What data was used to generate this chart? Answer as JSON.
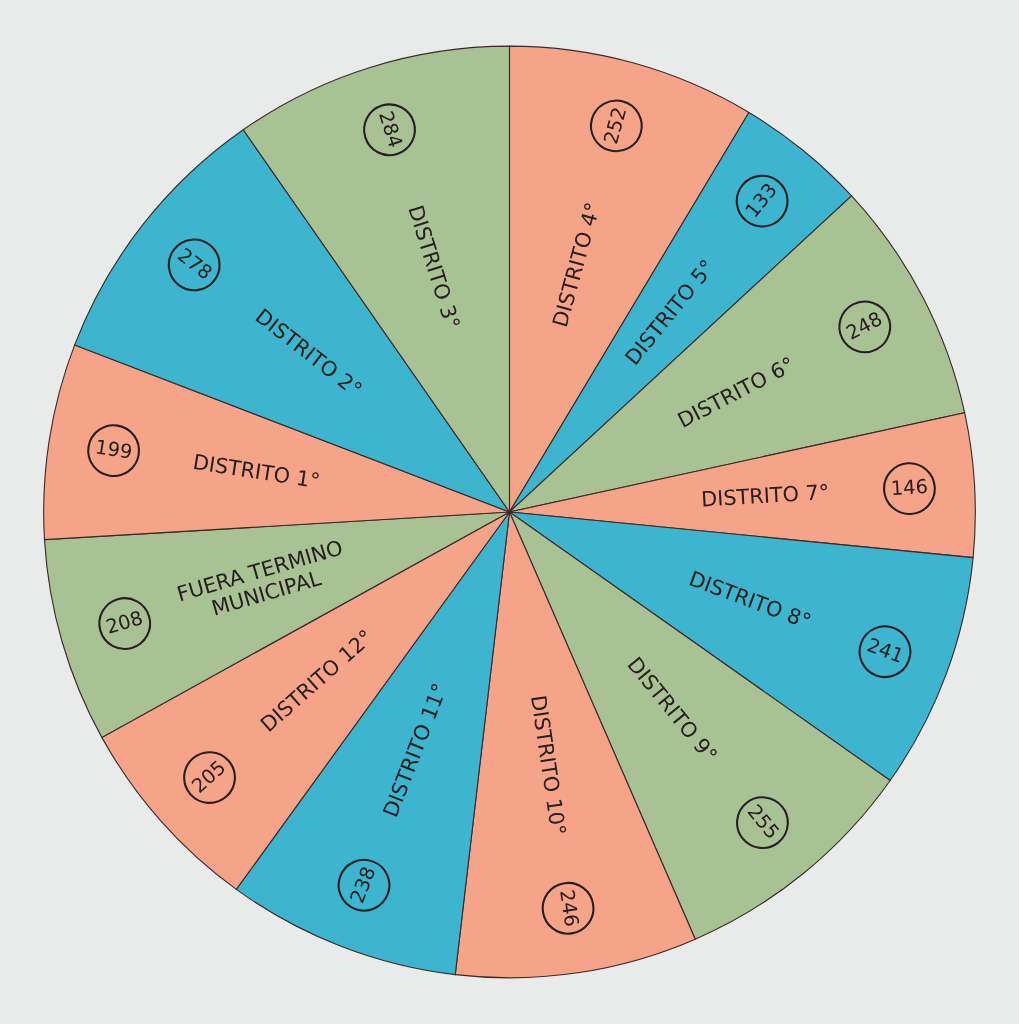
{
  "chart_data": {
    "type": "pie",
    "categories": [
      "DISTRITO 4°",
      "DISTRITO 5°",
      "DISTRITO 6°",
      "DISTRITO 7°",
      "DISTRITO 8°",
      "DISTRITO 9°",
      "DISTRITO 10°",
      "DISTRITO 11°",
      "DISTRITO 12°",
      "FUERA TERMINO\nMUNICIPAL",
      "DISTRITO 1°",
      "DISTRITO 2°",
      "DISTRITO 3°"
    ],
    "values": [
      252,
      133,
      248,
      146,
      241,
      255,
      246,
      238,
      205,
      208,
      199,
      278,
      284
    ],
    "colors": [
      "#f5a48a",
      "#3db5cf",
      "#a8c293",
      "#f5a48a",
      "#3db5cf",
      "#a8c293",
      "#f5a48a",
      "#3db5cf",
      "#f5a48a",
      "#a8c293",
      "#f5a48a",
      "#3db5cf",
      "#a8c293"
    ],
    "data_labels": true
  }
}
